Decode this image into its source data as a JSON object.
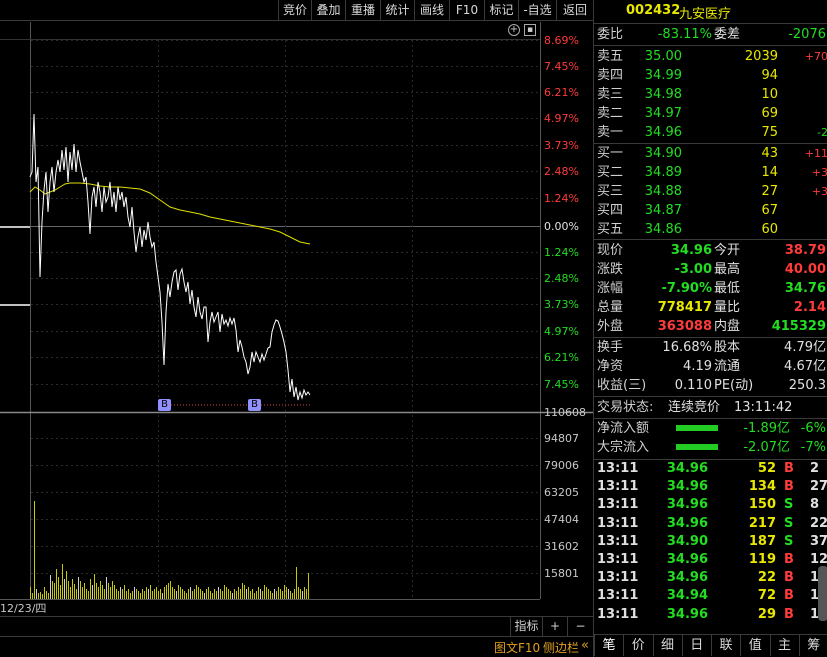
{
  "toolbar": {
    "items": [
      "竞价",
      "叠加",
      "重播",
      "统计",
      "画线",
      "F10",
      "标记",
      "-自选",
      "返回"
    ]
  },
  "chart": {
    "pct_labels_up": [
      "8.69%",
      "7.45%",
      "6.21%",
      "4.97%",
      "3.73%",
      "2.48%",
      "1.24%"
    ],
    "zero_label": "0.00%",
    "pct_labels_down": [
      "1.24%",
      "2.48%",
      "3.73%",
      "4.97%",
      "6.21%",
      "7.45%"
    ],
    "vol_labels": [
      "110608",
      "94807",
      "79006",
      "63205",
      "47404",
      "31602",
      "15801"
    ],
    "date_label": "12/23/四",
    "markers": [
      "B",
      "B"
    ],
    "colors": {
      "price": "#ffffff",
      "avg": "#e0e000",
      "volume": "#c8c800",
      "up": "#ff3b3b",
      "down": "#22dd22"
    }
  },
  "bottom": {
    "indicator_label": "指标",
    "plus": "+",
    "minus": "−",
    "tuwen": "图文F10",
    "sidebar": "侧边栏",
    "collapse": "«"
  },
  "stock": {
    "code": "002432",
    "name": "九安医疗"
  },
  "ratio": {
    "label1": "委比",
    "value1": "-83.11%",
    "label2": "委差",
    "value2": "-2076"
  },
  "asks": [
    {
      "label": "卖五",
      "price": "35.00",
      "vol": "2039",
      "chg": "+70",
      "chg_color": "red"
    },
    {
      "label": "卖四",
      "price": "34.99",
      "vol": "94",
      "chg": "",
      "chg_color": ""
    },
    {
      "label": "卖三",
      "price": "34.98",
      "vol": "10",
      "chg": "",
      "chg_color": ""
    },
    {
      "label": "卖二",
      "price": "34.97",
      "vol": "69",
      "chg": "",
      "chg_color": ""
    },
    {
      "label": "卖一",
      "price": "34.96",
      "vol": "75",
      "chg": "-2",
      "chg_color": "green"
    }
  ],
  "bids": [
    {
      "label": "买一",
      "price": "34.90",
      "vol": "43",
      "chg": "+11",
      "chg_color": "red"
    },
    {
      "label": "买二",
      "price": "34.89",
      "vol": "14",
      "chg": "+3",
      "chg_color": "red"
    },
    {
      "label": "买三",
      "price": "34.88",
      "vol": "27",
      "chg": "+3",
      "chg_color": "red"
    },
    {
      "label": "买四",
      "price": "34.87",
      "vol": "67",
      "chg": "",
      "chg_color": ""
    },
    {
      "label": "买五",
      "price": "34.86",
      "vol": "60",
      "chg": "",
      "chg_color": ""
    }
  ],
  "quote": [
    {
      "l1": "现价",
      "v1": "34.96",
      "c1": "green",
      "l2": "今开",
      "v2": "38.79",
      "c2": "red"
    },
    {
      "l1": "涨跌",
      "v1": "-3.00",
      "c1": "green",
      "l2": "最高",
      "v2": "40.00",
      "c2": "red"
    },
    {
      "l1": "涨幅",
      "v1": "-7.90%",
      "c1": "green",
      "l2": "最低",
      "v2": "34.76",
      "c2": "green"
    },
    {
      "l1": "总量",
      "v1": "778417",
      "c1": "yellow",
      "l2": "量比",
      "v2": "2.14",
      "c2": "red"
    },
    {
      "l1": "外盘",
      "v1": "363088",
      "c1": "red",
      "l2": "内盘",
      "v2": "415329",
      "c2": "green"
    }
  ],
  "fund": [
    {
      "l1": "换手",
      "v1": "16.68%",
      "l2": "股本",
      "v2": "4.79亿"
    },
    {
      "l1": "净资",
      "v1": "4.19",
      "l2": "流通",
      "v2": "4.67亿"
    },
    {
      "l1": "收益(三)",
      "v1": "0.110",
      "l2": "PE(动)",
      "v2": "250.3"
    }
  ],
  "trade_status": {
    "label": "交易状态:",
    "value": "连续竞价",
    "time": "13:11:42"
  },
  "flows": [
    {
      "label": "净流入额",
      "value": "-1.89亿",
      "pct": "-6%"
    },
    {
      "label": "大宗流入",
      "value": "-2.07亿",
      "pct": "-7%"
    }
  ],
  "ticks": [
    {
      "time": "13:11",
      "price": "34.96",
      "pc": "green",
      "vol": "52",
      "bs": "B",
      "n": "2"
    },
    {
      "time": "13:11",
      "price": "34.96",
      "pc": "green",
      "vol": "134",
      "bs": "B",
      "n": "27"
    },
    {
      "time": "13:11",
      "price": "34.96",
      "pc": "green",
      "vol": "150",
      "bs": "S",
      "n": "8"
    },
    {
      "time": "13:11",
      "price": "34.96",
      "pc": "green",
      "vol": "217",
      "bs": "S",
      "n": "22"
    },
    {
      "time": "13:11",
      "price": "34.90",
      "pc": "green",
      "vol": "187",
      "bs": "S",
      "n": "37"
    },
    {
      "time": "13:11",
      "price": "34.96",
      "pc": "green",
      "vol": "119",
      "bs": "B",
      "n": "12"
    },
    {
      "time": "13:11",
      "price": "34.96",
      "pc": "green",
      "vol": "22",
      "bs": "B",
      "n": "1"
    },
    {
      "time": "13:11",
      "price": "34.94",
      "pc": "green",
      "vol": "72",
      "bs": "B",
      "n": "1"
    },
    {
      "time": "13:11",
      "price": "34.96",
      "pc": "green",
      "vol": "29",
      "bs": "B",
      "n": "1"
    }
  ],
  "tabs": [
    "笔",
    "价",
    "细",
    "日",
    "联",
    "值",
    "主",
    "筹"
  ]
}
